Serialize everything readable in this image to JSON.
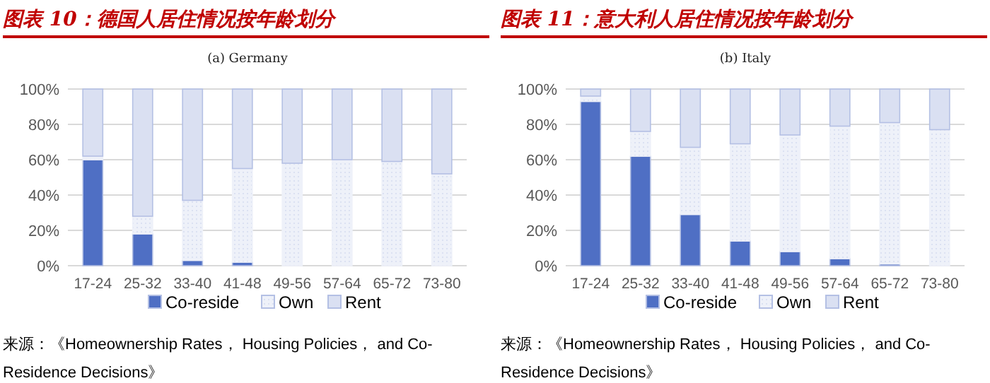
{
  "chart_data": [
    {
      "type": "bar",
      "stacked": true,
      "title": "图表 10：德国人居住情况按年龄划分",
      "subtitle": "(a) Germany",
      "categories": [
        "17-24",
        "25-32",
        "33-40",
        "41-48",
        "49-56",
        "57-64",
        "65-72",
        "73-80"
      ],
      "series": [
        {
          "name": "Co-reside",
          "color": "#4f6fc4",
          "values": [
            60,
            18,
            3,
            2,
            0,
            0,
            0,
            0
          ]
        },
        {
          "name": "Own",
          "color": "#eef1f9",
          "values": [
            2,
            10,
            34,
            53,
            58,
            60,
            59,
            52
          ]
        },
        {
          "name": "Rent",
          "color": "#dae0f2",
          "values": [
            38,
            72,
            63,
            45,
            42,
            40,
            41,
            48
          ]
        }
      ],
      "ylim": [
        0,
        100
      ],
      "yticks": [
        {
          "value": 0,
          "label": "0%"
        },
        {
          "value": 20,
          "label": "20%"
        },
        {
          "value": 40,
          "label": "40%"
        },
        {
          "value": 60,
          "label": "60%"
        },
        {
          "value": 80,
          "label": "80%"
        },
        {
          "value": 100,
          "label": "100%"
        }
      ],
      "grid": "y",
      "legend": "bottom",
      "annotations": [
        "来源：《Homeownership Rates， Housing Policies， and Co-Residence Decisions》"
      ]
    },
    {
      "type": "bar",
      "stacked": true,
      "title": "图表 11：意大利人居住情况按年龄划分",
      "subtitle": "(b) Italy",
      "categories": [
        "17-24",
        "25-32",
        "33-40",
        "41-48",
        "49-56",
        "57-64",
        "65-72",
        "73-80"
      ],
      "series": [
        {
          "name": "Co-reside",
          "color": "#4f6fc4",
          "values": [
            93,
            62,
            29,
            14,
            8,
            4,
            1,
            0
          ]
        },
        {
          "name": "Own",
          "color": "#eef1f9",
          "values": [
            3,
            14,
            38,
            55,
            66,
            75,
            80,
            77
          ]
        },
        {
          "name": "Rent",
          "color": "#dae0f2",
          "values": [
            4,
            24,
            33,
            31,
            26,
            21,
            19,
            23
          ]
        }
      ],
      "ylim": [
        0,
        100
      ],
      "yticks": [
        {
          "value": 0,
          "label": "0%"
        },
        {
          "value": 20,
          "label": "20%"
        },
        {
          "value": 40,
          "label": "40%"
        },
        {
          "value": 60,
          "label": "60%"
        },
        {
          "value": 80,
          "label": "80%"
        },
        {
          "value": 100,
          "label": "100%"
        }
      ],
      "grid": "y",
      "legend": "bottom",
      "annotations": [
        "来源：《Homeownership Rates， Housing Policies， and Co-Residence Decisions》"
      ]
    }
  ]
}
